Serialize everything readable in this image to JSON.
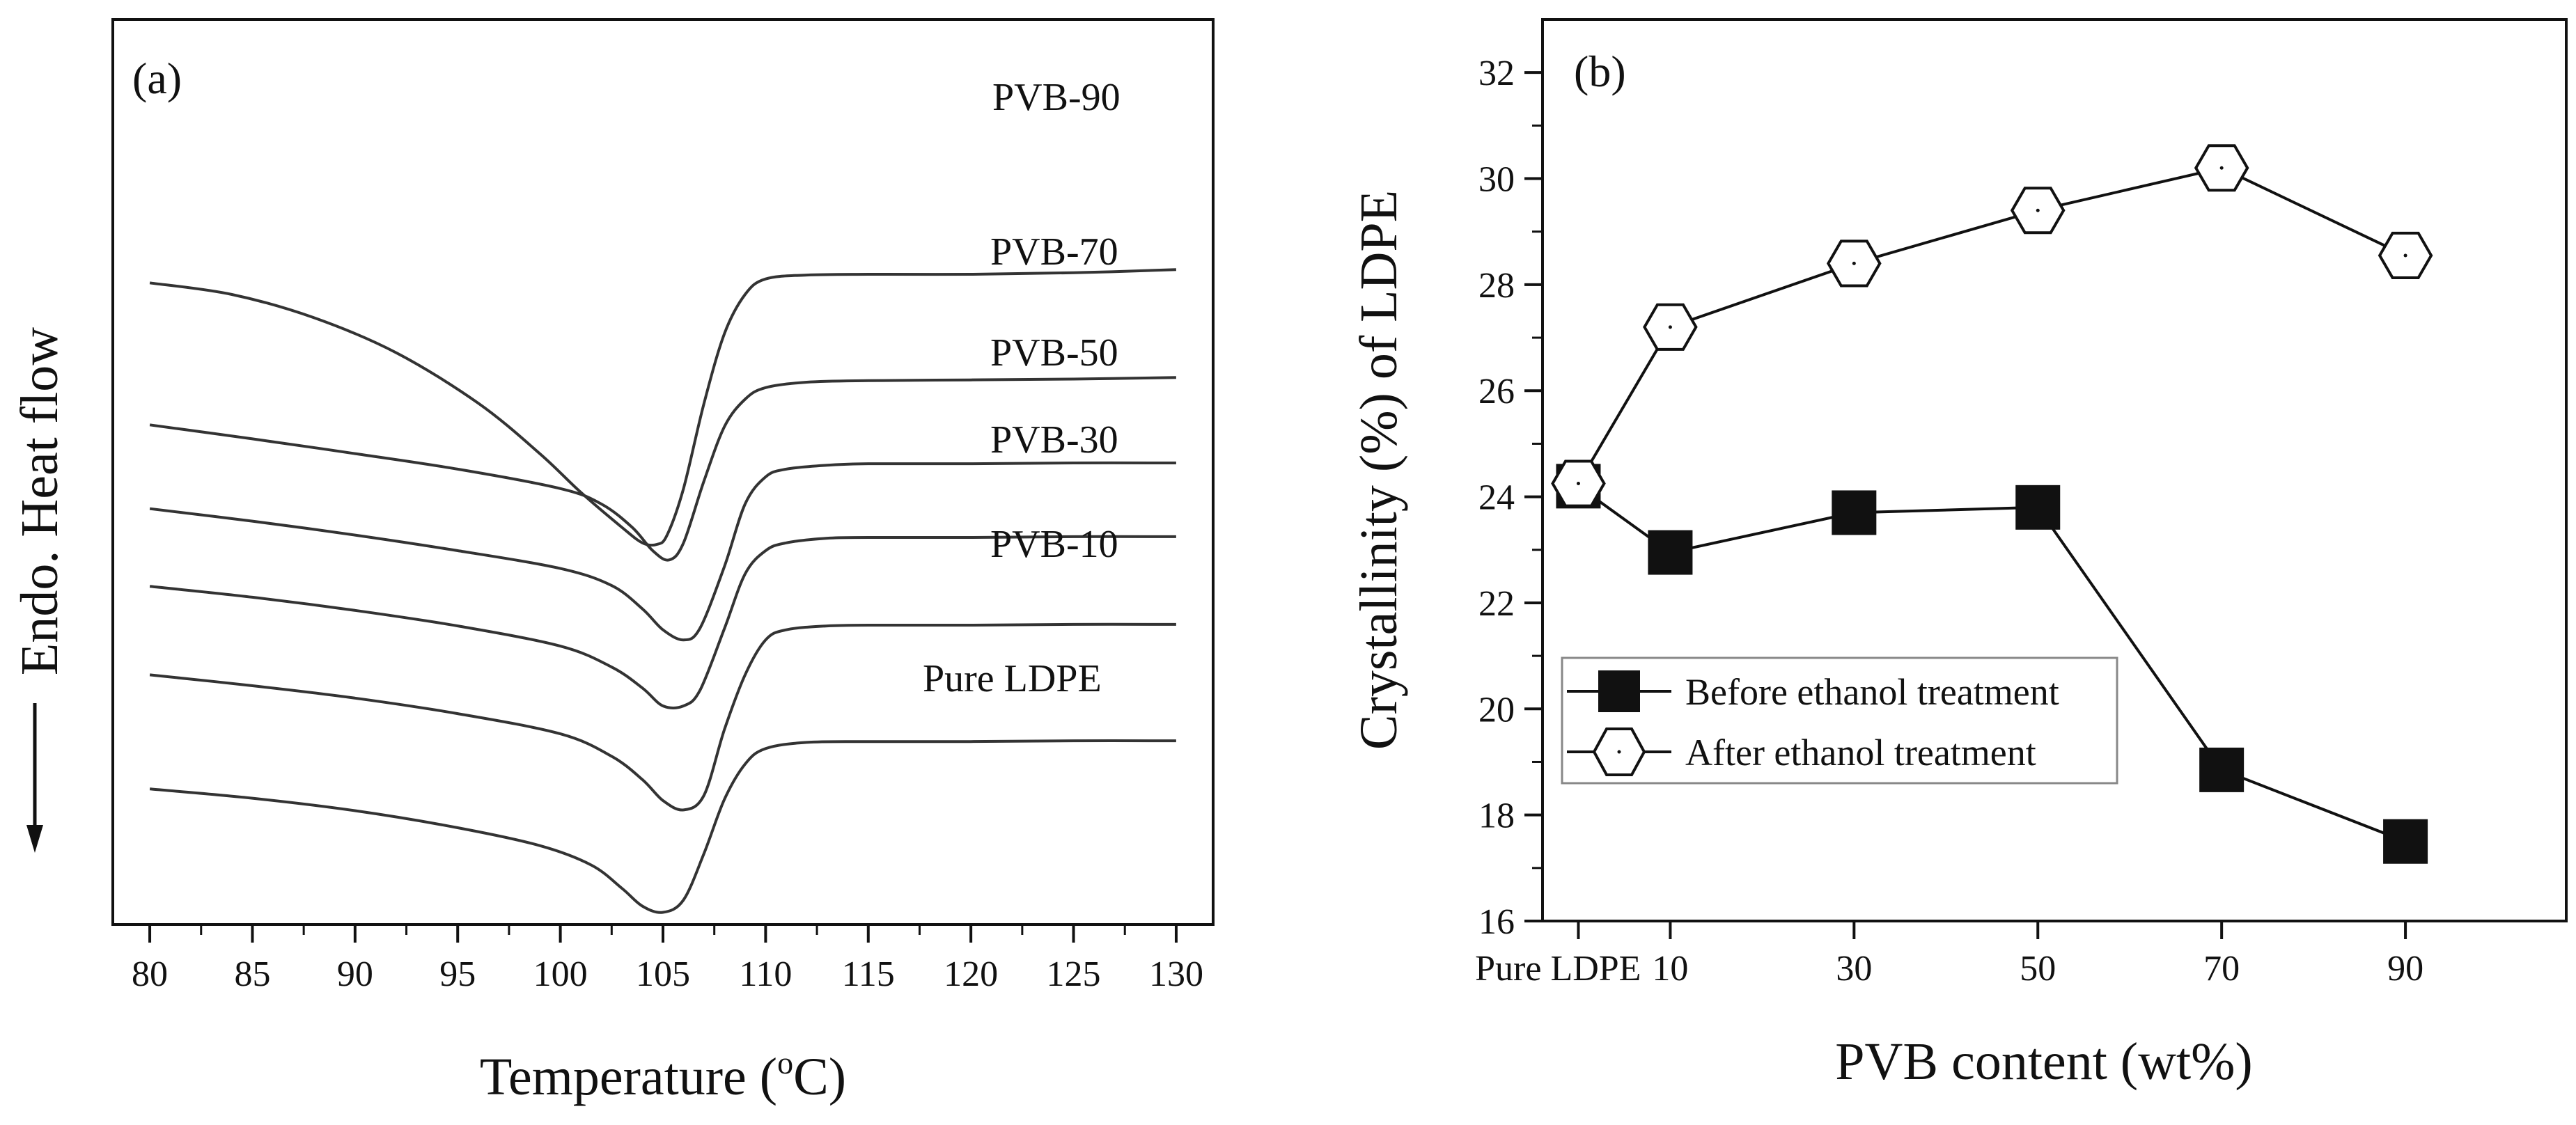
{
  "chart_data": [
    {
      "type": "line",
      "panel_label": "(a)",
      "xlabel": "Temperature (oC)",
      "xlabel_main": "Temperature (",
      "xlabel_sup": "o",
      "xlabel_tail": "C)",
      "ylabel": "Endo. Heat flow",
      "xlim": [
        78.2,
        131.8
      ],
      "xticks": [
        80,
        85,
        90,
        95,
        100,
        105,
        110,
        115,
        120,
        125,
        130
      ],
      "xtick_labels": [
        "80",
        "85",
        "90",
        "95",
        "100",
        "105",
        "110",
        "115",
        "120",
        "125",
        "130"
      ],
      "yticks_shown": false,
      "ylim": [
        0,
        1
      ],
      "series": [
        {
          "name": "PVB-90",
          "label": "PVB-90",
          "x": [
            80,
            84,
            88,
            92,
            96,
            99,
            101,
            103,
            104,
            104.7,
            105.2,
            106,
            107,
            108,
            109,
            110,
            112,
            115,
            120,
            125,
            130
          ],
          "y": [
            0.815,
            0.8,
            0.77,
            0.725,
            0.66,
            0.595,
            0.545,
            0.5,
            0.48,
            0.478,
            0.49,
            0.55,
            0.66,
            0.75,
            0.8,
            0.82,
            0.825,
            0.826,
            0.826,
            0.828,
            0.832
          ]
        },
        {
          "name": "PVB-70",
          "label": "PVB-70",
          "x": [
            80,
            85,
            90,
            95,
            100,
            102,
            103.5,
            104.5,
            105.3,
            106,
            107,
            108,
            109,
            110,
            112,
            115,
            120,
            125,
            130
          ],
          "y": [
            0.632,
            0.614,
            0.595,
            0.575,
            0.55,
            0.53,
            0.5,
            0.47,
            0.458,
            0.48,
            0.56,
            0.63,
            0.665,
            0.68,
            0.687,
            0.689,
            0.69,
            0.691,
            0.693
          ]
        },
        {
          "name": "PVB-50",
          "label": "PVB-50",
          "x": [
            80,
            85,
            90,
            95,
            100,
            102.5,
            104,
            105,
            106,
            106.8,
            108,
            109,
            110,
            111,
            113,
            115,
            120,
            125,
            130
          ],
          "y": [
            0.524,
            0.508,
            0.49,
            0.47,
            0.447,
            0.425,
            0.395,
            0.368,
            0.355,
            0.37,
            0.45,
            0.53,
            0.565,
            0.575,
            0.58,
            0.582,
            0.582,
            0.583,
            0.583
          ]
        },
        {
          "name": "PVB-30",
          "label": "PVB-30",
          "x": [
            80,
            85,
            90,
            95,
            100,
            102.5,
            104,
            105,
            106,
            106.8,
            108,
            109,
            110,
            111,
            113,
            115,
            120,
            125,
            130
          ],
          "y": [
            0.424,
            0.41,
            0.393,
            0.373,
            0.347,
            0.32,
            0.293,
            0.27,
            0.27,
            0.29,
            0.37,
            0.44,
            0.47,
            0.48,
            0.486,
            0.487,
            0.487,
            0.488,
            0.488
          ]
        },
        {
          "name": "PVB-10",
          "label": "PVB-10",
          "x": [
            80,
            85,
            90,
            95,
            100,
            102.5,
            104,
            105,
            106,
            107,
            108,
            109,
            110,
            111,
            113,
            115,
            120,
            125,
            130
          ],
          "y": [
            0.31,
            0.296,
            0.28,
            0.26,
            0.234,
            0.205,
            0.175,
            0.148,
            0.136,
            0.155,
            0.24,
            0.31,
            0.355,
            0.368,
            0.373,
            0.374,
            0.374,
            0.375,
            0.375
          ]
        },
        {
          "name": "Pure LDPE",
          "label": "Pure LDPE",
          "x": [
            80,
            85,
            90,
            95,
            99,
            101.5,
            103,
            104,
            105,
            106,
            107,
            108,
            109,
            110,
            112,
            115,
            120,
            125,
            130
          ],
          "y": [
            0.163,
            0.151,
            0.135,
            0.113,
            0.09,
            0.065,
            0.035,
            0.012,
            0.004,
            0.02,
            0.08,
            0.15,
            0.195,
            0.215,
            0.223,
            0.224,
            0.224,
            0.225,
            0.225
          ]
        }
      ]
    },
    {
      "type": "line",
      "panel_label": "(b)",
      "xlabel": "PVB content (wt%)",
      "ylabel": "Crystallinity (%) of LDPE",
      "ylim": [
        16,
        33
      ],
      "yticks": [
        16,
        18,
        20,
        22,
        24,
        26,
        28,
        30,
        32
      ],
      "ytick_labels": [
        "16",
        "18",
        "20",
        "22",
        "24",
        "26",
        "28",
        "30",
        "32"
      ],
      "xlim": [
        -3.9,
        107.5
      ],
      "categories": [
        "Pure LDPE",
        "10",
        "30",
        "50",
        "70",
        "90"
      ],
      "x": [
        0,
        10,
        30,
        50,
        70,
        90
      ],
      "series": [
        {
          "name": "Before ethanol treatment",
          "marker": "square",
          "values": [
            24.2,
            22.95,
            23.7,
            23.8,
            18.85,
            17.5
          ]
        },
        {
          "name": "After ethanol treatment",
          "marker": "hexagon",
          "values": [
            24.25,
            27.2,
            28.4,
            29.4,
            30.2,
            28.55
          ]
        }
      ],
      "legend": {
        "placement": "lower-left",
        "entries": [
          "Before ethanol treatment",
          "After ethanol treatment"
        ]
      }
    }
  ]
}
